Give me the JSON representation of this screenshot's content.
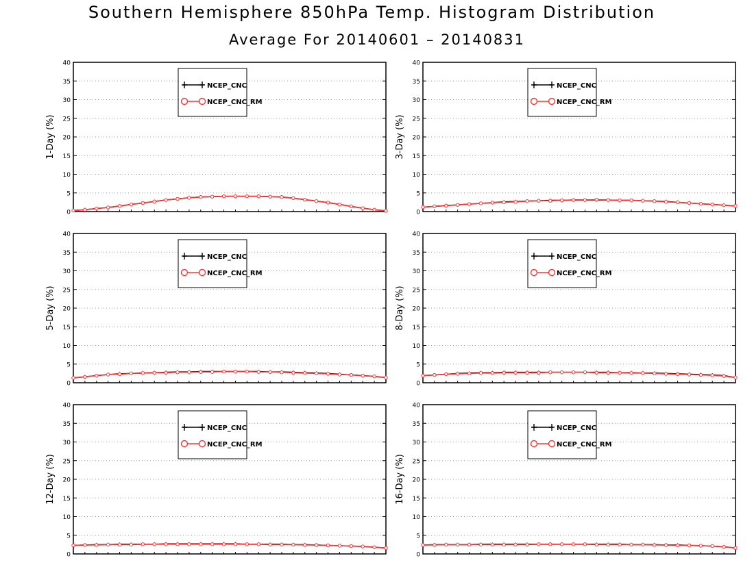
{
  "page": {
    "title": "Southern Hemisphere 850hPa Temp. Histogram Distribution",
    "subtitle": "Average For 20140601 – 20140831"
  },
  "style": {
    "series_colors": [
      "#000000",
      "#ff3333"
    ],
    "grid_color": "#999999"
  },
  "chart_data": [
    {
      "type": "line",
      "ylabel": "1-Day (%)",
      "ylim": [
        0,
        40
      ],
      "yticks": [
        0,
        5,
        10,
        15,
        20,
        25,
        30,
        35,
        40
      ],
      "grid": true,
      "legend": "top-left",
      "series": [
        {
          "name": "NCEP_CNC",
          "marker": "plus",
          "values": [
            0.3,
            0.5,
            0.8,
            1.1,
            1.5,
            1.9,
            2.3,
            2.7,
            3.1,
            3.4,
            3.7,
            3.9,
            4.0,
            4.1,
            4.1,
            4.1,
            4.1,
            4.0,
            3.9,
            3.6,
            3.2,
            2.8,
            2.4,
            1.9,
            1.4,
            0.9,
            0.5,
            0.2
          ]
        },
        {
          "name": "NCEP_CNC_RM",
          "marker": "circle",
          "values": [
            0.3,
            0.5,
            0.8,
            1.1,
            1.5,
            1.9,
            2.3,
            2.7,
            3.1,
            3.4,
            3.7,
            3.9,
            4.0,
            4.1,
            4.1,
            4.1,
            4.1,
            4.0,
            3.9,
            3.6,
            3.2,
            2.8,
            2.4,
            1.9,
            1.4,
            0.9,
            0.5,
            0.2
          ]
        }
      ]
    },
    {
      "type": "line",
      "ylabel": "3-Day (%)",
      "ylim": [
        0,
        40
      ],
      "yticks": [
        0,
        5,
        10,
        15,
        20,
        25,
        30,
        35,
        40
      ],
      "grid": true,
      "legend": "top-left",
      "series": [
        {
          "name": "NCEP_CNC",
          "marker": "plus",
          "values": [
            1.2,
            1.4,
            1.6,
            1.8,
            2.0,
            2.2,
            2.4,
            2.6,
            2.7,
            2.8,
            2.9,
            3.0,
            3.0,
            3.1,
            3.1,
            3.1,
            3.1,
            3.0,
            3.0,
            2.9,
            2.8,
            2.7,
            2.5,
            2.3,
            2.1,
            1.9,
            1.7,
            1.5
          ]
        },
        {
          "name": "NCEP_CNC_RM",
          "marker": "circle",
          "values": [
            1.2,
            1.4,
            1.6,
            1.8,
            2.0,
            2.2,
            2.4,
            2.5,
            2.6,
            2.8,
            2.9,
            2.9,
            3.0,
            3.1,
            3.1,
            3.2,
            3.1,
            3.0,
            3.0,
            2.9,
            2.8,
            2.6,
            2.5,
            2.3,
            2.1,
            1.9,
            1.7,
            1.5
          ]
        }
      ]
    },
    {
      "type": "line",
      "ylabel": "5-Day (%)",
      "ylim": [
        0,
        40
      ],
      "yticks": [
        0,
        5,
        10,
        15,
        20,
        25,
        30,
        35,
        40
      ],
      "grid": true,
      "legend": "top-left",
      "series": [
        {
          "name": "NCEP_CNC",
          "marker": "plus",
          "values": [
            1.3,
            1.6,
            1.9,
            2.2,
            2.4,
            2.5,
            2.6,
            2.7,
            2.8,
            2.9,
            2.9,
            3.0,
            3.0,
            3.0,
            3.0,
            3.0,
            3.0,
            2.9,
            2.9,
            2.8,
            2.7,
            2.6,
            2.5,
            2.3,
            2.1,
            1.9,
            1.7,
            1.4
          ]
        },
        {
          "name": "NCEP_CNC_RM",
          "marker": "circle",
          "values": [
            1.3,
            1.6,
            1.9,
            2.2,
            2.3,
            2.5,
            2.6,
            2.7,
            2.7,
            2.8,
            2.8,
            2.9,
            2.9,
            3.0,
            3.0,
            3.0,
            2.9,
            2.9,
            2.8,
            2.7,
            2.6,
            2.5,
            2.4,
            2.2,
            2.1,
            1.9,
            1.7,
            1.4
          ]
        }
      ]
    },
    {
      "type": "line",
      "ylabel": "8-Day (%)",
      "ylim": [
        0,
        40
      ],
      "yticks": [
        0,
        5,
        10,
        15,
        20,
        25,
        30,
        35,
        40
      ],
      "grid": true,
      "legend": "top-left",
      "series": [
        {
          "name": "NCEP_CNC",
          "marker": "plus",
          "values": [
            1.9,
            2.1,
            2.3,
            2.5,
            2.6,
            2.7,
            2.7,
            2.8,
            2.8,
            2.8,
            2.8,
            2.8,
            2.8,
            2.8,
            2.8,
            2.8,
            2.8,
            2.7,
            2.7,
            2.6,
            2.6,
            2.5,
            2.4,
            2.3,
            2.2,
            2.1,
            1.9,
            1.4
          ]
        },
        {
          "name": "NCEP_CNC_RM",
          "marker": "circle",
          "values": [
            1.9,
            2.1,
            2.3,
            2.4,
            2.5,
            2.6,
            2.6,
            2.7,
            2.7,
            2.7,
            2.7,
            2.8,
            2.8,
            2.8,
            2.8,
            2.7,
            2.7,
            2.7,
            2.6,
            2.6,
            2.5,
            2.4,
            2.3,
            2.2,
            2.1,
            2.0,
            1.8,
            1.4
          ]
        }
      ]
    },
    {
      "type": "line",
      "ylabel": "12-Day (%)",
      "ylim": [
        0,
        40
      ],
      "yticks": [
        0,
        5,
        10,
        15,
        20,
        25,
        30,
        35,
        40
      ],
      "grid": true,
      "legend": "top-left",
      "series": [
        {
          "name": "NCEP_CNC",
          "marker": "plus",
          "values": [
            2.3,
            2.4,
            2.5,
            2.5,
            2.6,
            2.6,
            2.6,
            2.6,
            2.7,
            2.7,
            2.7,
            2.7,
            2.7,
            2.7,
            2.7,
            2.6,
            2.6,
            2.6,
            2.6,
            2.5,
            2.5,
            2.4,
            2.3,
            2.2,
            2.1,
            2.0,
            1.8,
            1.6
          ]
        },
        {
          "name": "NCEP_CNC_RM",
          "marker": "circle",
          "values": [
            2.3,
            2.4,
            2.4,
            2.5,
            2.5,
            2.5,
            2.6,
            2.6,
            2.6,
            2.6,
            2.6,
            2.6,
            2.6,
            2.6,
            2.6,
            2.6,
            2.6,
            2.5,
            2.5,
            2.5,
            2.4,
            2.4,
            2.3,
            2.2,
            2.1,
            2.0,
            1.8,
            1.6
          ]
        }
      ]
    },
    {
      "type": "line",
      "ylabel": "16-Day (%)",
      "ylim": [
        0,
        40
      ],
      "yticks": [
        0,
        5,
        10,
        15,
        20,
        25,
        30,
        35,
        40
      ],
      "grid": true,
      "legend": "top-left",
      "series": [
        {
          "name": "NCEP_CNC",
          "marker": "plus",
          "values": [
            2.4,
            2.5,
            2.5,
            2.5,
            2.5,
            2.6,
            2.6,
            2.6,
            2.6,
            2.6,
            2.6,
            2.6,
            2.6,
            2.6,
            2.6,
            2.6,
            2.6,
            2.6,
            2.5,
            2.5,
            2.5,
            2.4,
            2.4,
            2.3,
            2.2,
            2.1,
            1.9,
            1.6
          ]
        },
        {
          "name": "NCEP_CNC_RM",
          "marker": "circle",
          "values": [
            2.4,
            2.4,
            2.5,
            2.5,
            2.5,
            2.5,
            2.5,
            2.5,
            2.5,
            2.5,
            2.6,
            2.6,
            2.6,
            2.6,
            2.6,
            2.5,
            2.5,
            2.5,
            2.5,
            2.5,
            2.4,
            2.4,
            2.3,
            2.3,
            2.2,
            2.1,
            1.9,
            1.6
          ]
        }
      ]
    }
  ]
}
